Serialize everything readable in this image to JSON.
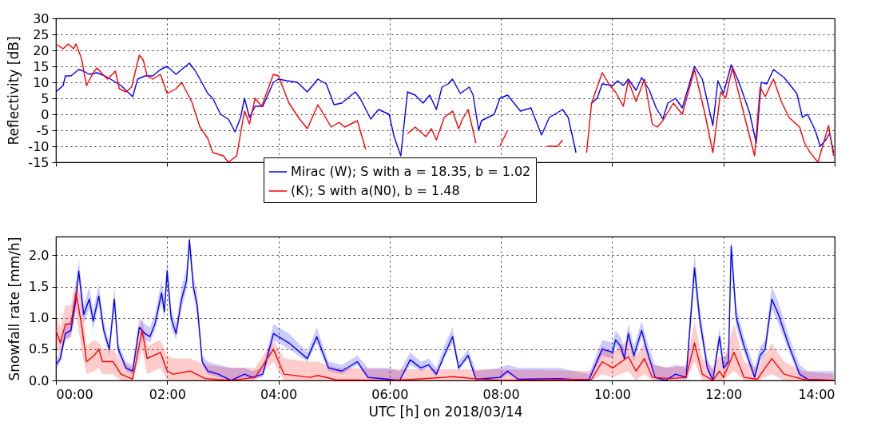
{
  "chart_data": [
    {
      "type": "line",
      "ylabel": "Reflectivity [dB]",
      "xlim": [
        0,
        14
      ],
      "xticks": [
        {
          "value": 0,
          "label": null
        },
        {
          "value": 2,
          "label": null
        },
        {
          "value": 4,
          "label": null
        },
        {
          "value": 6,
          "label": null
        },
        {
          "value": 8,
          "label": null
        },
        {
          "value": 10,
          "label": null
        },
        {
          "value": 12,
          "label": null
        },
        {
          "value": 14,
          "label": null
        }
      ],
      "ylim": [
        -15,
        30
      ],
      "yticks": [
        -15,
        -10,
        -5,
        0,
        5,
        10,
        15,
        20,
        25,
        30
      ],
      "grid": true,
      "legend": "bottom",
      "tick_labels": "y",
      "series": [
        {
          "name": "Mirac (W); S with a = 18.35, b = 1.02",
          "color": "#0000ff",
          "x": [
            0,
            0.13,
            0.17,
            0.27,
            0.41,
            0.5,
            0.6,
            0.74,
            0.88,
            1.03,
            1.17,
            1.26,
            1.38,
            1.47,
            1.6,
            1.74,
            1.88,
            2.0,
            2.16,
            2.26,
            2.4,
            2.49,
            2.59,
            2.73,
            2.82,
            2.96,
            3.1,
            3.22,
            3.32,
            3.39,
            3.48,
            3.58,
            3.72,
            3.91,
            4.0,
            4.15,
            4.34,
            4.52,
            4.71,
            4.86,
            5.0,
            5.14,
            5.38,
            5.47,
            5.66,
            5.8,
            5.99,
            6.08,
            6.2,
            6.32,
            6.46,
            6.6,
            6.72,
            6.84,
            6.94,
            7.05,
            7.13,
            7.27,
            7.43,
            7.5,
            7.6,
            7.65,
            7.88,
            7.98,
            8.12,
            8.35,
            8.54,
            8.73,
            8.87,
            9.11,
            9.21,
            9.35,
            9.44,
            9.56,
            9.63,
            9.73,
            9.82,
            10.01,
            10.1,
            10.2,
            10.29,
            10.43,
            10.53,
            10.67,
            10.79,
            10.91,
            11.0,
            11.14,
            11.26,
            11.38,
            11.48,
            11.62,
            11.81,
            11.9,
            12.0,
            12.14,
            12.28,
            12.47,
            12.59,
            12.68,
            12.78,
            12.9,
            13.09,
            13.32,
            13.42,
            13.51,
            13.65,
            13.74,
            13.84,
            13.91,
            13.98
          ],
          "values": [
            7,
            9,
            12,
            12,
            14,
            13.5,
            12.5,
            13,
            12,
            10.5,
            9,
            7.5,
            5.5,
            11,
            12,
            12,
            14,
            15,
            12.5,
            14,
            16,
            14,
            11,
            6.5,
            5,
            0,
            -1.5,
            -5.5,
            -1,
            5,
            -1,
            2.5,
            2.5,
            10,
            11,
            10.5,
            10,
            7,
            11,
            9.5,
            3,
            3.5,
            7,
            5,
            -1.5,
            1.5,
            0,
            -7,
            -13,
            7,
            6,
            3.5,
            6,
            1.5,
            8.5,
            9.5,
            11,
            6.5,
            8.5,
            6,
            -5,
            -2,
            0,
            5,
            6,
            1,
            2,
            -6.5,
            -1,
            1.5,
            -1,
            -12,
            null,
            null,
            3.5,
            5,
            9.5,
            9,
            10.5,
            9,
            11,
            7.5,
            11.5,
            7.5,
            2,
            -1.5,
            3.5,
            5,
            2,
            9,
            15,
            11,
            -3.5,
            10.5,
            6.5,
            15.5,
            10,
            0.5,
            -9,
            10,
            9.5,
            14,
            11.5,
            6.5,
            -1,
            0,
            -5,
            -10,
            -8,
            -6,
            -12
          ]
        },
        {
          "name": "(K); S with a(N0), b = 1.48",
          "color": "#ff0000",
          "x": [
            0,
            0.13,
            0.22,
            0.32,
            0.36,
            0.46,
            0.55,
            0.67,
            0.74,
            0.84,
            0.93,
            1.07,
            1.14,
            1.26,
            1.36,
            1.5,
            1.57,
            1.64,
            1.74,
            1.88,
            2.0,
            2.16,
            2.26,
            2.44,
            2.59,
            2.73,
            2.82,
            3.01,
            3.1,
            3.25,
            3.39,
            3.48,
            3.58,
            3.7,
            3.91,
            4.0,
            4.19,
            4.38,
            4.52,
            4.71,
            4.95,
            5.09,
            5.19,
            5.42,
            5.57,
            5.8,
            5.99,
            6.08,
            6.32,
            6.46,
            6.65,
            6.75,
            6.84,
            6.98,
            7.13,
            7.24,
            7.31,
            7.41,
            7.55,
            7.74,
            7.88,
            7.98,
            8.12,
            8.31,
            8.59,
            8.83,
            9.02,
            9.11,
            9.25,
            9.54,
            9.63,
            9.82,
            9.96,
            10.06,
            10.2,
            10.29,
            10.43,
            10.58,
            10.72,
            10.81,
            10.91,
            11.1,
            11.26,
            11.48,
            11.67,
            11.81,
            11.95,
            12.04,
            12.16,
            12.37,
            12.56,
            12.66,
            12.75,
            12.9,
            13.04,
            13.18,
            13.37,
            13.46,
            13.56,
            13.7,
            13.89,
            13.98
          ],
          "values": [
            22,
            20.5,
            22,
            20.5,
            22,
            17.5,
            9,
            13,
            14.5,
            12.5,
            11,
            13.5,
            8,
            7,
            8.5,
            18.5,
            17,
            12,
            11,
            12.5,
            6.5,
            8,
            10,
            4,
            -4,
            -7.5,
            -12,
            -13,
            -15,
            -13,
            1,
            -3,
            5,
            2.5,
            12.5,
            12,
            3.5,
            -1.5,
            -4.5,
            3,
            -4,
            -2.5,
            -4,
            -2,
            -11,
            null,
            null,
            null,
            -6,
            -4,
            -7,
            -4.5,
            -8,
            -1,
            1,
            -4.5,
            -1.5,
            1.5,
            -9,
            null,
            null,
            -10,
            -5,
            null,
            null,
            -10,
            -10,
            -8,
            null,
            -12,
            3.5,
            13,
            9,
            7,
            2.5,
            10.5,
            4,
            11,
            -3,
            -4,
            -2,
            3.5,
            0,
            14,
            0,
            -12,
            7,
            5,
            14.5,
            0,
            -13,
            8.5,
            5.5,
            11,
            4,
            -1,
            -4,
            -9,
            -12,
            -15,
            -3.5,
            -13
          ]
        }
      ]
    },
    {
      "type": "line",
      "ylabel": "Snowfall rate [mm/h]",
      "xlabel": "UTC [h] on 2018/03/14",
      "xlim": [
        0,
        14
      ],
      "xticks": [
        {
          "value": 0,
          "label": "00:00"
        },
        {
          "value": 2,
          "label": "02:00"
        },
        {
          "value": 4,
          "label": "04:00"
        },
        {
          "value": 6,
          "label": "06:00"
        },
        {
          "value": 8,
          "label": "08:00"
        },
        {
          "value": 10,
          "label": "10:00"
        },
        {
          "value": 12,
          "label": "12:00"
        },
        {
          "value": 14,
          "label": "14:00"
        }
      ],
      "ylim": [
        0,
        2.3
      ],
      "yticks": [
        {
          "value": 0,
          "label": "0.0"
        },
        0.5,
        {
          "value": 1,
          "label": "1.0"
        },
        1.5,
        {
          "value": 2,
          "label": "2.0"
        }
      ],
      "grid": true,
      "series": [
        {
          "color": "#0000ff",
          "x": [
            0,
            0.08,
            0.17,
            0.27,
            0.36,
            0.41,
            0.5,
            0.6,
            0.67,
            0.77,
            0.86,
            0.96,
            1.05,
            1.12,
            1.26,
            1.38,
            1.5,
            1.6,
            1.69,
            1.78,
            1.9,
            1.95,
            2.0,
            2.07,
            2.16,
            2.26,
            2.35,
            2.4,
            2.47,
            2.54,
            2.63,
            2.73,
            2.92,
            3.15,
            3.39,
            3.53,
            3.72,
            3.91,
            4.0,
            4.19,
            4.52,
            4.69,
            4.9,
            5.14,
            5.42,
            5.61,
            5.99,
            6.18,
            6.37,
            6.56,
            6.7,
            6.84,
            6.98,
            7.13,
            7.24,
            7.41,
            7.55,
            7.98,
            8.12,
            8.31,
            9.06,
            9.58,
            9.82,
            10.01,
            10.06,
            10.15,
            10.22,
            10.29,
            10.39,
            10.53,
            10.62,
            10.77,
            10.96,
            11.14,
            11.33,
            11.48,
            11.57,
            11.71,
            11.81,
            11.93,
            12.0,
            12.09,
            12.14,
            12.23,
            12.37,
            12.56,
            12.66,
            12.75,
            12.87,
            12.99,
            13.18,
            13.37,
            13.51,
            13.98
          ],
          "values": [
            0.25,
            0.35,
            0.75,
            0.8,
            1.3,
            1.75,
            1.05,
            1.3,
            0.95,
            1.35,
            0.8,
            0.5,
            1.3,
            0.5,
            0.2,
            0.15,
            0.85,
            0.75,
            0.7,
            0.9,
            1.4,
            1.1,
            1.75,
            1.0,
            0.75,
            1.3,
            1.6,
            2.25,
            1.5,
            1.2,
            0.3,
            0.15,
            0.1,
            0.0,
            0.1,
            0.05,
            0.1,
            0.75,
            0.7,
            0.6,
            0.35,
            0.7,
            0.2,
            0.15,
            0.3,
            0.05,
            0.02,
            0.0,
            0.33,
            0.2,
            0.25,
            0.1,
            0.4,
            0.7,
            0.2,
            0.4,
            0.02,
            0.05,
            0.15,
            0.02,
            0.03,
            0.0,
            0.5,
            0.45,
            0.65,
            0.55,
            0.35,
            0.75,
            0.4,
            0.8,
            0.5,
            0.05,
            0.0,
            0.1,
            0.05,
            1.8,
            1.0,
            0.2,
            0.0,
            0.7,
            0.2,
            0.3,
            2.15,
            1.0,
            0.55,
            0.05,
            0.4,
            0.5,
            1.3,
            1.05,
            0.55,
            0.1,
            0.02,
            0.0
          ],
          "lower": [
            0.18,
            0.28,
            0.65,
            0.7,
            1.15,
            1.6,
            0.9,
            1.15,
            0.8,
            1.2,
            0.7,
            0.4,
            1.15,
            0.4,
            0.15,
            0.1,
            0.75,
            0.65,
            0.6,
            0.8,
            1.25,
            0.95,
            1.6,
            0.85,
            0.65,
            1.15,
            1.45,
            2.1,
            1.35,
            1.05,
            0.25,
            0.1,
            0.05,
            0,
            0.05,
            0.02,
            0.05,
            0.65,
            0.6,
            0.5,
            0.3,
            0.6,
            0.15,
            0.1,
            0.25,
            0.02,
            0,
            0,
            0.25,
            0.15,
            0.2,
            0.05,
            0.35,
            0.6,
            0.15,
            0.35,
            0,
            0,
            0.1,
            0,
            0,
            0,
            0.4,
            0.35,
            0.55,
            0.45,
            0.3,
            0.65,
            0.3,
            0.7,
            0.4,
            0.02,
            0,
            0.05,
            0.02,
            1.6,
            0.85,
            0.15,
            0,
            0.6,
            0.15,
            0.25,
            1.95,
            0.85,
            0.45,
            0.02,
            0.3,
            0.4,
            1.15,
            0.9,
            0.45,
            0.05,
            0,
            0
          ],
          "upper": [
            0.35,
            0.45,
            0.9,
            0.95,
            1.5,
            1.95,
            1.2,
            1.5,
            1.1,
            1.55,
            0.95,
            0.6,
            1.5,
            0.6,
            0.3,
            0.25,
            1.0,
            0.9,
            0.85,
            1.05,
            1.6,
            1.3,
            1.95,
            1.15,
            0.9,
            1.5,
            1.8,
            2.3,
            1.7,
            1.4,
            0.4,
            0.3,
            0.25,
            0.2,
            0.2,
            0.15,
            0.2,
            0.9,
            0.85,
            0.75,
            0.45,
            0.85,
            0.3,
            0.25,
            0.4,
            0.2,
            0.2,
            0.15,
            0.45,
            0.3,
            0.35,
            0.2,
            0.55,
            0.85,
            0.3,
            0.5,
            0.15,
            0.2,
            0.25,
            0.2,
            0.2,
            0.1,
            0.65,
            0.6,
            0.8,
            0.7,
            0.5,
            0.9,
            0.55,
            0.95,
            0.65,
            0.25,
            0.2,
            0.25,
            0.2,
            2.05,
            1.2,
            0.35,
            0.15,
            0.85,
            0.35,
            0.45,
            2.3,
            1.2,
            0.7,
            0.2,
            0.55,
            0.65,
            1.5,
            1.25,
            0.7,
            0.25,
            0.15,
            0.15
          ]
        },
        {
          "color": "#ff0000",
          "x": [
            0,
            0.08,
            0.17,
            0.27,
            0.36,
            0.46,
            0.55,
            0.69,
            0.77,
            0.84,
            1.03,
            1.17,
            1.38,
            1.55,
            1.64,
            1.88,
            2.0,
            2.11,
            2.42,
            2.68,
            3.15,
            3.58,
            3.91,
            4.1,
            4.57,
            4.71,
            5.04,
            5.99,
            6.46,
            6.98,
            7.13,
            7.5,
            7.98,
            9.63,
            9.82,
            10.01,
            10.29,
            10.43,
            10.58,
            10.72,
            11.05,
            11.33,
            11.48,
            11.62,
            11.81,
            11.93,
            12.0,
            12.19,
            12.37,
            12.61,
            12.87,
            13.09,
            13.42,
            13.98
          ],
          "values": [
            0.8,
            0.6,
            0.9,
            0.9,
            1.4,
            0.9,
            0.3,
            0.4,
            0.5,
            0.3,
            0.3,
            0.1,
            0.02,
            0.8,
            0.35,
            0.45,
            0.15,
            0.1,
            0.15,
            0.03,
            0.0,
            0.05,
            0.5,
            0.1,
            0.05,
            0.08,
            0.01,
            0.0,
            0.02,
            0.05,
            0.06,
            0.03,
            0.0,
            0.02,
            0.3,
            0.2,
            0.38,
            0.15,
            0.35,
            0.05,
            0.03,
            0.05,
            0.6,
            0.1,
            0.0,
            0.15,
            0.05,
            0.45,
            0.05,
            0.02,
            0.35,
            0.1,
            0.02,
            0.0
          ],
          "lower": [
            0.55,
            0.4,
            0.65,
            0.7,
            1.1,
            0.5,
            0.1,
            0.15,
            0.2,
            0.1,
            0.1,
            0,
            0,
            0.5,
            0.1,
            0.2,
            0,
            0,
            0,
            0,
            0,
            0,
            0.3,
            0,
            0,
            0,
            0,
            0,
            0,
            0,
            0,
            0,
            0,
            0,
            0.1,
            0.05,
            0.15,
            0,
            0.1,
            0,
            0,
            0,
            0.3,
            0,
            0,
            0,
            0,
            0.15,
            0,
            0,
            0.1,
            0,
            0,
            0
          ],
          "upper": [
            1.05,
            0.85,
            1.2,
            1.2,
            1.6,
            1.3,
            0.55,
            0.65,
            0.6,
            0.5,
            0.5,
            0.3,
            0.2,
            1.0,
            0.55,
            0.65,
            0.4,
            0.35,
            0.35,
            0.25,
            0.2,
            0.2,
            0.65,
            0.35,
            0.3,
            0.3,
            0.2,
            0.18,
            0.18,
            0.18,
            0.18,
            0.18,
            0.18,
            0.15,
            0.55,
            0.45,
            0.65,
            0.4,
            0.6,
            0.25,
            0.2,
            0.25,
            0.95,
            0.35,
            0.2,
            0.4,
            0.3,
            0.9,
            0.3,
            0.2,
            0.6,
            0.3,
            0.15,
            0.1
          ]
        }
      ]
    }
  ]
}
